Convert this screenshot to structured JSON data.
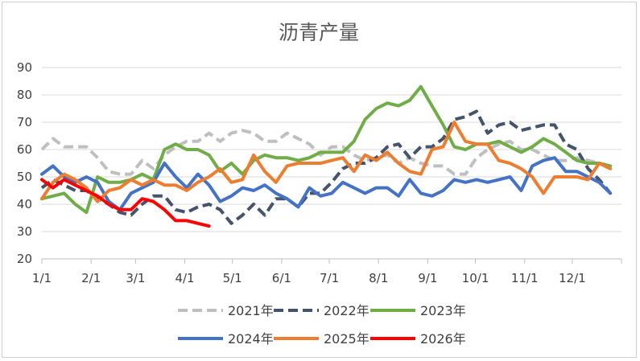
{
  "chart_data": {
    "type": "line",
    "title": "沥青产量",
    "xlabel": "",
    "ylabel": "",
    "ylim": [
      20,
      90
    ],
    "yticks": [
      20,
      30,
      40,
      50,
      60,
      70,
      80,
      90
    ],
    "x_tick_labels": [
      "1/1",
      "2/1",
      "3/1",
      "4/1",
      "5/1",
      "6/1",
      "7/1",
      "8/1",
      "9/1",
      "10/1",
      "11/1",
      "12/1"
    ],
    "x_unit": "week",
    "weeks_per_year": 52,
    "grid": "horizontal",
    "legend_position": "bottom",
    "series": [
      {
        "name": "2021年",
        "color": "#bfbfbf",
        "dash": "dashed",
        "values": [
          60,
          64,
          61,
          61,
          61,
          57,
          52,
          51,
          51,
          56,
          53,
          58,
          61,
          63,
          63,
          66,
          63,
          66,
          67,
          66,
          63,
          63,
          66,
          64,
          62,
          58,
          61,
          61,
          58,
          56,
          57,
          58,
          55,
          57,
          55,
          54,
          54,
          51,
          51,
          57,
          60,
          62,
          63,
          60,
          60,
          58,
          56,
          56,
          57,
          56,
          55,
          53
        ]
      },
      {
        "name": "2022年",
        "color": "#44546a",
        "dash": "dashed",
        "values": [
          46,
          49,
          47,
          45,
          45,
          42,
          40,
          37,
          36,
          40,
          43,
          43,
          38,
          37,
          39,
          40,
          38,
          33,
          36,
          40,
          36,
          42,
          42,
          39,
          44,
          44,
          48,
          53,
          55,
          55,
          57,
          61,
          62,
          57,
          61,
          61,
          64,
          71,
          72,
          74,
          66,
          69,
          70,
          67,
          68,
          69,
          69,
          62,
          60,
          53,
          49,
          44
        ]
      },
      {
        "name": "2023年",
        "color": "#70ad47",
        "dash": "solid",
        "values": [
          42,
          43,
          44,
          40,
          37,
          50,
          48,
          48,
          49,
          51,
          49,
          60,
          62,
          60,
          60,
          58,
          52,
          55,
          51,
          56,
          58,
          57,
          57,
          56,
          57,
          59,
          59,
          59,
          63,
          71,
          75,
          77,
          76,
          78,
          83,
          76,
          69,
          61,
          60,
          62,
          62,
          63,
          61,
          59,
          61,
          64,
          62,
          59,
          56,
          55,
          55,
          54
        ]
      },
      {
        "name": "2024年",
        "color": "#4472c4",
        "dash": "solid",
        "values": [
          51,
          54,
          50,
          48,
          50,
          48,
          41,
          38,
          44,
          46,
          48,
          55,
          50,
          46,
          51,
          47,
          41,
          43,
          46,
          45,
          47,
          44,
          42,
          39,
          46,
          43,
          44,
          48,
          46,
          44,
          46,
          46,
          43,
          49,
          44,
          43,
          45,
          49,
          48,
          49,
          48,
          49,
          50,
          45,
          54,
          56,
          57,
          52,
          52,
          50,
          48,
          44
        ]
      },
      {
        "name": "2025年",
        "color": "#ed7d31",
        "dash": "solid",
        "values": [
          42,
          48,
          51,
          49,
          46,
          41,
          45,
          46,
          49,
          47,
          49,
          47,
          47,
          45,
          48,
          50,
          53,
          48,
          49,
          58,
          52,
          48,
          54,
          55,
          55,
          55,
          56,
          57,
          52,
          58,
          56,
          59,
          55,
          52,
          51,
          60,
          61,
          70,
          63,
          62,
          62,
          56,
          55,
          53,
          50,
          44,
          50,
          50,
          50,
          49,
          55,
          53
        ]
      },
      {
        "name": "2026年",
        "color": "#ff0000",
        "dash": "solid",
        "values": [
          49,
          46,
          49,
          47,
          45,
          43,
          40,
          38,
          38,
          42,
          41,
          38,
          34,
          34,
          33,
          32
        ]
      }
    ]
  }
}
